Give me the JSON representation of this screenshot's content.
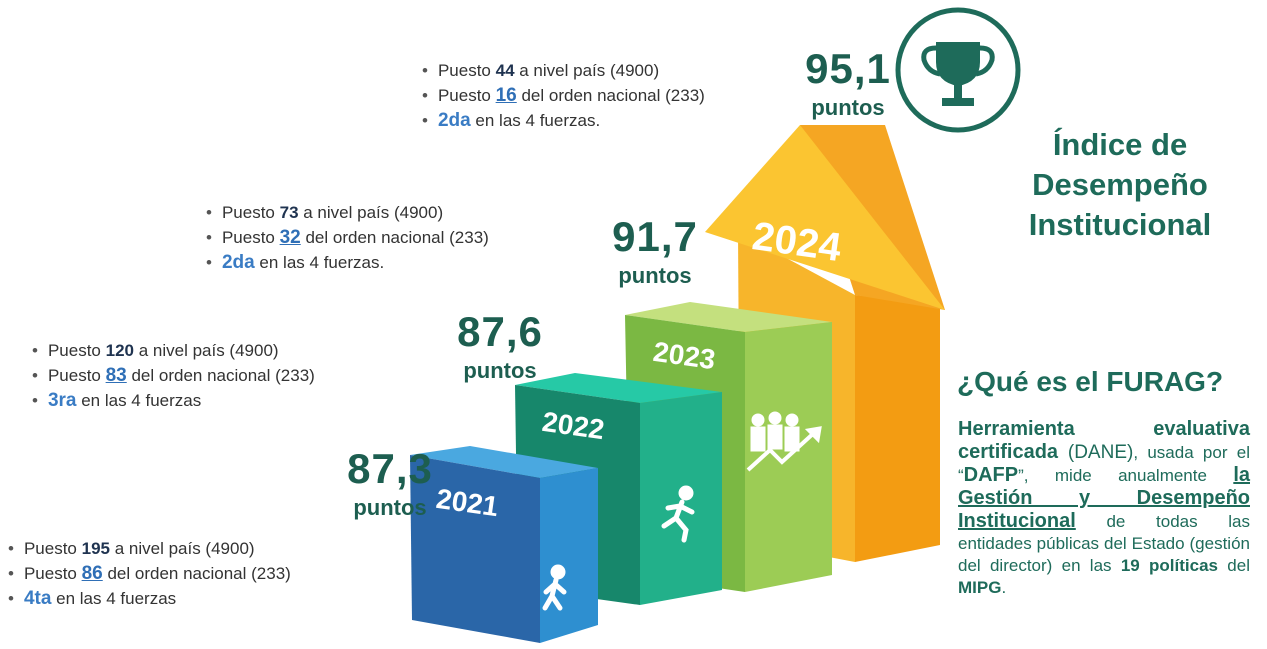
{
  "title": [
    "Índice de",
    "Desempeño",
    "Institucional"
  ],
  "unit": "puntos",
  "years": [
    {
      "year": "2021",
      "score": "87,3",
      "bullets": [
        {
          "pre": "Puesto ",
          "key": "195",
          "post": " a nivel país (4900)"
        },
        {
          "pre": "Puesto ",
          "key": "86",
          "post": " del orden nacional (233)"
        },
        {
          "pre": "",
          "key": "4ta",
          "post": " en las 4 fuerzas"
        }
      ]
    },
    {
      "year": "2022",
      "score": "87,6",
      "bullets": [
        {
          "pre": "Puesto ",
          "key": "120",
          "post": " a nivel país (4900)"
        },
        {
          "pre": "Puesto ",
          "key": "83",
          "post": " del orden nacional (233)"
        },
        {
          "pre": "",
          "key": "3ra",
          "post": " en las 4 fuerzas"
        }
      ]
    },
    {
      "year": "2023",
      "score": "91,7",
      "bullets": [
        {
          "pre": "Puesto ",
          "key": "73",
          "post": " a nivel país (4900)"
        },
        {
          "pre": "Puesto ",
          "key": "32",
          "post": " del orden nacional (233)"
        },
        {
          "pre": "",
          "key": "2da",
          "post": " en las 4 fuerzas."
        }
      ]
    },
    {
      "year": "2024",
      "score": "95,1",
      "bullets": [
        {
          "pre": "Puesto ",
          "key": "44",
          "post": " a nivel país (4900)"
        },
        {
          "pre": "Puesto ",
          "key": "16",
          "post": " del orden nacional (233)"
        },
        {
          "pre": "",
          "key": "2da",
          "post": " en las 4 fuerzas."
        }
      ]
    }
  ],
  "furag": {
    "heading": "¿Qué es el FURAG?",
    "segments": [
      {
        "text": "Herramienta evaluativa certificada",
        "style": "bold"
      },
      {
        "text": " (DANE)",
        "style": "plain"
      },
      {
        "text": ", usada por el “",
        "style": "small"
      },
      {
        "text": "DAFP",
        "style": "bold"
      },
      {
        "text": "”, mide anualmente ",
        "style": "small"
      },
      {
        "text": "la Gestión y Desempeño Institucional",
        "style": "underline"
      },
      {
        "text": " de todas las entidades públicas del Estado (gestión del director) en las ",
        "style": "small"
      },
      {
        "text": "19 políticas",
        "style": "strong"
      },
      {
        "text": " del ",
        "style": "small"
      },
      {
        "text": "MIPG",
        "style": "strong"
      },
      {
        "text": ".",
        "style": "small"
      }
    ]
  }
}
